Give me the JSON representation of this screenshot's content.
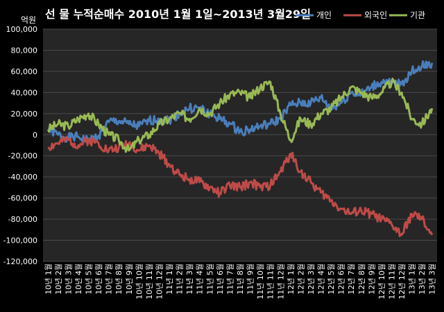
{
  "chart_data": {
    "type": "line",
    "title": "선 물 누적순매수 2010년 1월 1일~2013년 3월29일",
    "unit_label": "억원",
    "xlabel": "",
    "ylabel": "",
    "ylim": [
      -120000,
      100000
    ],
    "yticks": [
      100000,
      80000,
      60000,
      40000,
      20000,
      0,
      -20000,
      -40000,
      -60000,
      -80000,
      -100000,
      -120000
    ],
    "ytick_labels": [
      "100,000",
      "80,000",
      "60,000",
      "40,000",
      "20,000",
      "0",
      "-20,000",
      "-40,000",
      "-60,000",
      "-80,000",
      "-100,000",
      "-120,000"
    ],
    "categories": [
      "10년 1월",
      "10년 2월",
      "10년 3월",
      "10년 4월",
      "10년 5월",
      "10년 6월",
      "10년 7월",
      "10년 8월",
      "10년 9월",
      "10년 10월",
      "10년 11월",
      "10년 12월",
      "11년 1월",
      "11년 2월",
      "11년 3월",
      "11년 4월",
      "11년 5월",
      "11년 6월",
      "11년 7월",
      "11년 8월",
      "11년 9월",
      "11년 10월",
      "11년 11월",
      "11년 12월",
      "12년 1월",
      "12년 2월",
      "12년 3월",
      "12년 4월",
      "12년 5월",
      "12년 6월",
      "12년 7월",
      "12년 8월",
      "12년 9월",
      "12년 10월",
      "12년 11월",
      "12년 12월",
      "13년 1월",
      "13년 2월",
      "13년 3월"
    ],
    "grid": true,
    "legend_position": "top-right",
    "series": [
      {
        "name": "개인",
        "color": "#4a7ebb",
        "values": [
          5000,
          0,
          -3000,
          -2000,
          -6000,
          -1000,
          12000,
          13000,
          10000,
          8000,
          13000,
          15000,
          14000,
          20000,
          25000,
          25000,
          20000,
          15000,
          10000,
          3000,
          5000,
          8000,
          10000,
          15000,
          28000,
          30000,
          30000,
          35000,
          25000,
          30000,
          40000,
          38000,
          45000,
          50000,
          48000,
          48000,
          60000,
          65000,
          68000
        ]
      },
      {
        "name": "외국인",
        "color": "#be4b48",
        "values": [
          -12000,
          -8000,
          -5000,
          -10000,
          -5000,
          -8000,
          -15000,
          -12000,
          -8000,
          -15000,
          -10000,
          -18000,
          -28000,
          -38000,
          -42000,
          -45000,
          -50000,
          -55000,
          -48000,
          -50000,
          -45000,
          -50000,
          -48000,
          -35000,
          -18000,
          -35000,
          -45000,
          -55000,
          -62000,
          -70000,
          -75000,
          -72000,
          -75000,
          -80000,
          -85000,
          -95000,
          -75000,
          -80000,
          -95000
        ]
      },
      {
        "name": "기관",
        "color": "#98b954",
        "values": [
          5000,
          10000,
          8000,
          15000,
          20000,
          10000,
          0,
          -5000,
          -15000,
          -5000,
          0,
          10000,
          15000,
          20000,
          15000,
          25000,
          20000,
          30000,
          38000,
          40000,
          35000,
          45000,
          50000,
          20000,
          -5000,
          15000,
          10000,
          20000,
          25000,
          35000,
          45000,
          40000,
          35000,
          40000,
          50000,
          40000,
          15000,
          10000,
          25000
        ]
      }
    ]
  }
}
